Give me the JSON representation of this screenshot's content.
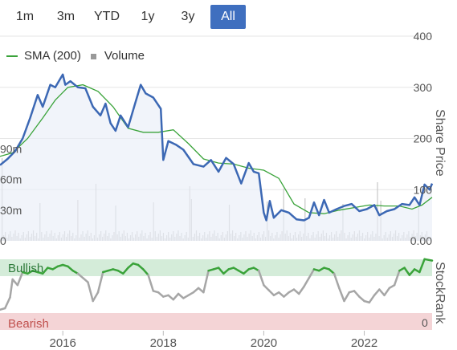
{
  "range_buttons": [
    "1m",
    "3m",
    "YTD",
    "1y",
    "3y",
    "All"
  ],
  "active_range": "All",
  "legend": {
    "sma_label": "SMA (200)",
    "volume_label": "Volume"
  },
  "colors": {
    "price": "#3c68b4",
    "sma": "#3aa33a",
    "volume": "#c8c8c8",
    "rank_line": "#a6a6a6",
    "bullish_band": "#d4ecd9",
    "bearish_band": "#f4d4d6",
    "active_button": "#3f6fbf"
  },
  "chart_data": [
    {
      "type": "line",
      "ylabel": "Share Price",
      "yticks": [
        "0.00",
        "100",
        "200",
        "300",
        "400"
      ],
      "ylim": [
        0,
        400
      ],
      "xticks": [
        "2016",
        "2018",
        "2020",
        "2022"
      ],
      "xlim": [
        2014.75,
        2023.35
      ],
      "volume_ticks": [
        "0",
        "30m",
        "60m",
        "90m"
      ],
      "volume_ylim": [
        0,
        200
      ],
      "series": [
        {
          "name": "SMA (200)",
          "x": [
            2014.75,
            2015.0,
            2015.3,
            2015.6,
            2015.85,
            2016.1,
            2016.4,
            2016.7,
            2017.0,
            2017.3,
            2017.6,
            2017.9,
            2018.2,
            2018.5,
            2018.8,
            2019.1,
            2019.4,
            2019.7,
            2020.0,
            2020.3,
            2020.6,
            2020.9,
            2021.2,
            2021.5,
            2021.8,
            2022.1,
            2022.4,
            2022.7,
            2022.95,
            2023.15,
            2023.35
          ],
          "values": [
            165,
            172,
            200,
            240,
            275,
            300,
            305,
            292,
            262,
            220,
            212,
            212,
            217,
            190,
            160,
            152,
            150,
            142,
            138,
            122,
            72,
            55,
            53,
            60,
            65,
            70,
            68,
            68,
            62,
            70,
            85
          ]
        },
        {
          "name": "Price",
          "x": [
            2014.75,
            2014.9,
            2015.05,
            2015.2,
            2015.35,
            2015.5,
            2015.6,
            2015.75,
            2015.85,
            2016.0,
            2016.05,
            2016.15,
            2016.3,
            2016.45,
            2016.6,
            2016.75,
            2016.85,
            2016.95,
            2017.05,
            2017.15,
            2017.3,
            2017.45,
            2017.55,
            2017.65,
            2017.8,
            2017.95,
            2018.0,
            2018.1,
            2018.25,
            2018.4,
            2018.6,
            2018.8,
            2018.95,
            2019.1,
            2019.25,
            2019.4,
            2019.55,
            2019.7,
            2019.8,
            2019.9,
            2020.0,
            2020.05,
            2020.12,
            2020.2,
            2020.35,
            2020.5,
            2020.65,
            2020.8,
            2020.9,
            2021.0,
            2021.1,
            2021.2,
            2021.3,
            2021.45,
            2021.6,
            2021.75,
            2021.9,
            2022.05,
            2022.2,
            2022.3,
            2022.45,
            2022.6,
            2022.75,
            2022.9,
            2023.0,
            2023.1,
            2023.2,
            2023.3,
            2023.35
          ],
          "values": [
            148,
            160,
            175,
            200,
            240,
            285,
            262,
            305,
            300,
            325,
            305,
            312,
            300,
            298,
            262,
            245,
            268,
            230,
            215,
            245,
            222,
            272,
            305,
            288,
            280,
            258,
            158,
            195,
            188,
            178,
            150,
            145,
            158,
            135,
            162,
            150,
            112,
            152,
            135,
            132,
            55,
            40,
            78,
            45,
            60,
            55,
            42,
            40,
            45,
            75,
            50,
            80,
            55,
            62,
            68,
            72,
            58,
            62,
            70,
            50,
            58,
            62,
            72,
            70,
            85,
            70,
            110,
            100,
            112
          ]
        }
      ]
    },
    {
      "type": "line",
      "ylabel": "StockRank",
      "bands": [
        "Bullish",
        "Bearish"
      ],
      "yticks": [
        "0"
      ],
      "ylim": [
        0,
        100
      ],
      "x": [
        2014.75,
        2014.85,
        2014.95,
        2015.0,
        2015.1,
        2015.2,
        2015.3,
        2015.4,
        2015.5,
        2015.6,
        2015.7,
        2015.8,
        2015.9,
        2016.0,
        2016.1,
        2016.2,
        2016.3,
        2016.4,
        2016.5,
        2016.6,
        2016.7,
        2016.8,
        2016.9,
        2017.0,
        2017.1,
        2017.2,
        2017.3,
        2017.4,
        2017.5,
        2017.6,
        2017.7,
        2017.8,
        2017.9,
        2018.0,
        2018.1,
        2018.2,
        2018.3,
        2018.4,
        2018.5,
        2018.6,
        2018.7,
        2018.8,
        2018.9,
        2019.0,
        2019.1,
        2019.2,
        2019.3,
        2019.4,
        2019.5,
        2019.6,
        2019.7,
        2019.8,
        2019.9,
        2020.0,
        2020.1,
        2020.2,
        2020.3,
        2020.4,
        2020.5,
        2020.6,
        2020.7,
        2020.8,
        2020.9,
        2021.0,
        2021.1,
        2021.2,
        2021.3,
        2021.4,
        2021.5,
        2021.6,
        2021.7,
        2021.8,
        2021.9,
        2022.0,
        2022.1,
        2022.2,
        2022.3,
        2022.4,
        2022.5,
        2022.6,
        2022.7,
        2022.8,
        2022.9,
        2023.0,
        2023.1,
        2023.2,
        2023.35
      ],
      "values": [
        28,
        30,
        45,
        70,
        62,
        80,
        78,
        82,
        80,
        78,
        86,
        84,
        88,
        90,
        88,
        82,
        78,
        72,
        66,
        40,
        52,
        80,
        82,
        84,
        82,
        78,
        86,
        92,
        90,
        84,
        76,
        54,
        52,
        46,
        48,
        42,
        50,
        44,
        48,
        52,
        58,
        52,
        82,
        84,
        86,
        78,
        84,
        86,
        82,
        78,
        84,
        86,
        82,
        62,
        55,
        48,
        52,
        46,
        52,
        56,
        50,
        60,
        72,
        84,
        82,
        86,
        84,
        78,
        58,
        40,
        52,
        54,
        46,
        40,
        38,
        48,
        56,
        48,
        58,
        62,
        82,
        86,
        76,
        84,
        80,
        98,
        96
      ]
    }
  ]
}
